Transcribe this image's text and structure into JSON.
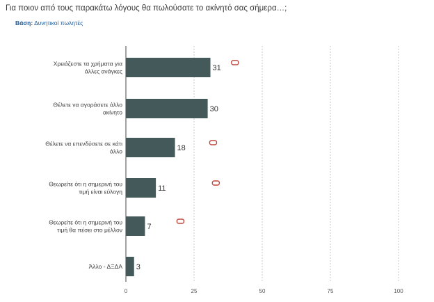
{
  "question": "Για ποιον από τους παρακάτω λόγους θα πωλούσατε το ακίνητό σας σήμερα…;",
  "base": {
    "label": "Βάση:",
    "value": "Δυνητικοί πωλητές"
  },
  "colors": {
    "bar": "#44595a",
    "marker": "#c0453a",
    "grid": "#bdbdbd",
    "base_text": "#1f5a9a"
  },
  "chart_data": {
    "type": "bar",
    "orientation": "horizontal",
    "categories": [
      [
        "Χρειάζεστε τα χρήματα για",
        "άλλες ανάγκες"
      ],
      [
        "Θέλετε να αγοράσετε άλλο",
        "ακίνητο"
      ],
      [
        "Θέλετε να επενδύσετε σε κάτι",
        "άλλο"
      ],
      [
        "Θεωρείτε ότι η σημερινή του",
        "τιμή είναι εύλογη"
      ],
      [
        "Θεωρείτε ότι η σημερινή του",
        "τιμή θα πέσει στο μέλλον"
      ],
      [
        "Άλλο - ΔΞΔΑ"
      ]
    ],
    "values": [
      31,
      30,
      18,
      11,
      7,
      3
    ],
    "markers": [
      40,
      null,
      32,
      33,
      20,
      null
    ],
    "xlim": [
      0,
      100
    ],
    "xticks": [
      0,
      25,
      50,
      75,
      100
    ],
    "grid": "dashed-vertical"
  }
}
